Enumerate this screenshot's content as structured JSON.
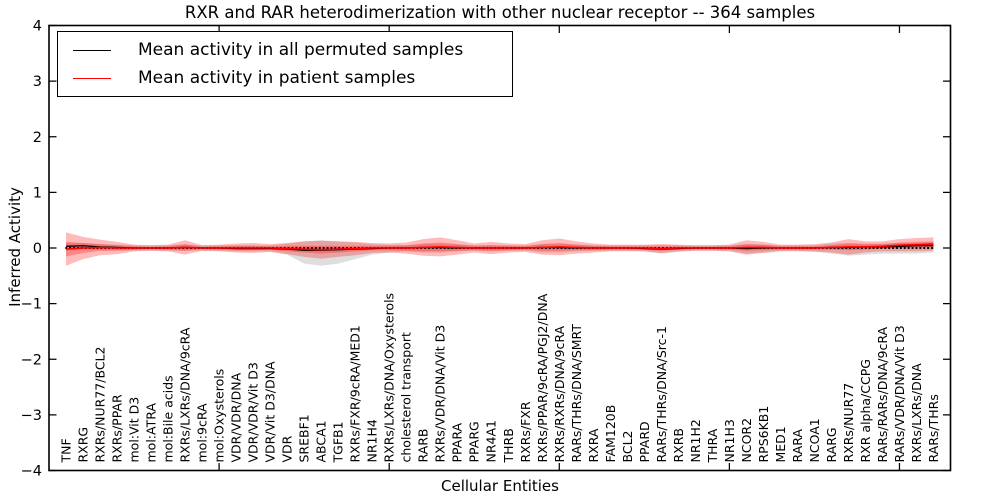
{
  "figure": {
    "background": "#ffffff"
  },
  "chart_data": {
    "type": "line",
    "title": "RXR and RAR heterodimerization with other nuclear receptor -- 364 samples",
    "xlabel": "Cellular Entities",
    "ylabel": "Inferred Activity",
    "xlim": [
      0,
      53
    ],
    "ylim": [
      -4,
      4
    ],
    "grid": false,
    "legend_position": "upper left",
    "yticks": {
      "values": [
        -4,
        -3,
        -2,
        -1,
        0,
        1,
        2,
        3,
        4
      ],
      "labels": [
        "−4",
        "−3",
        "−2",
        "−1",
        "0",
        "1",
        "2",
        "3",
        "4"
      ]
    },
    "xticks": {
      "values": [
        10,
        20,
        30,
        40,
        50
      ]
    },
    "legend": [
      {
        "label": "Mean activity in all permuted samples",
        "color": "#000000"
      },
      {
        "label": "Mean activity in patient samples",
        "color": "#ff0000"
      }
    ],
    "categories": [
      "TNF",
      "RXRG",
      "RXRs/NUR77/BCL2",
      "RXRs/PPAR",
      "mol:Vit D3",
      "mol:ATRA",
      "mol:Bile acids",
      "RXRs/LXRs/DNA/9cRA",
      "mol:9cRA",
      "mol:Oxysterols",
      "VDR/VDR/DNA",
      "VDR/VDR/Vit D3",
      "VDR/Vit D3/DNA",
      "VDR",
      "SREBF1",
      "ABCA1",
      "TGFB1",
      "RXRs/FXR/9cRA/MED1",
      "NR1H4",
      "RXRs/LXRs/DNA/Oxysterols",
      "cholesterol transport",
      "RARB",
      "RXRs/VDR/DNA/Vit D3",
      "PPARA",
      "PPARG",
      "NR4A1",
      "THRB",
      "RXRs/FXR",
      "RXRs/PPAR/9cRA/PGJ2/DNA",
      "RXRs/RXRs/DNA/9cRA",
      "RARs/THRs/DNA/SMRT",
      "RXRA",
      "FAM120B",
      "BCL2",
      "PPARD",
      "RARs/THRs/DNA/Src-1",
      "RXRB",
      "NR1H2",
      "THRA",
      "NR1H3",
      "NCOR2",
      "RPS6KB1",
      "MED1",
      "RARA",
      "NCOA1",
      "RARG",
      "RXRs/NUR77",
      "RXR alpha/CCPG",
      "RARs/RARs/DNA/9cRA",
      "RARs/VDR/DNA/Vit D3",
      "RXRs/LXRs/DNA",
      "RARs/THRs"
    ],
    "series": [
      {
        "name": "Mean activity in all permuted samples",
        "color": "#000000",
        "values": [
          0.03,
          0.04,
          0.02,
          0.01,
          0,
          0,
          0,
          0.01,
          0,
          0,
          -0.01,
          -0.01,
          -0.01,
          -0.02,
          -0.04,
          -0.04,
          -0.03,
          -0.02,
          -0.01,
          0,
          0,
          0.01,
          0.01,
          0,
          0,
          0,
          0,
          0,
          0.01,
          0.01,
          0,
          0,
          0,
          0,
          -0.01,
          -0.02,
          -0.01,
          0,
          0,
          0,
          -0.01,
          0,
          0,
          0,
          0,
          0.01,
          0.01,
          0.02,
          0.02,
          0.03,
          0.04,
          0.04
        ]
      },
      {
        "name": "Mean activity in patient samples",
        "color": "#ff0000",
        "values": [
          -0.02,
          0,
          0.01,
          0,
          0,
          0,
          0,
          0.01,
          0,
          0,
          0,
          0,
          0,
          -0.01,
          -0.02,
          -0.03,
          -0.02,
          -0.01,
          0,
          0,
          0,
          0.01,
          0.02,
          0.01,
          0,
          0,
          0,
          0,
          0.01,
          0.02,
          0.01,
          0,
          0,
          0,
          0,
          -0.01,
          0,
          0,
          0,
          0,
          0.01,
          0.01,
          0,
          0,
          0,
          0.01,
          0.02,
          0.02,
          0.03,
          0.05,
          0.06,
          0.07
        ]
      }
    ],
    "zero_line": {
      "value": 0,
      "color": "#000000",
      "style": "dotted"
    },
    "bands": [
      {
        "name": "permuted-samples-range",
        "color": "rgba(0,0,0,0.13)",
        "lo": [
          -0.05,
          -0.03,
          -0.04,
          -0.04,
          -0.05,
          -0.05,
          -0.05,
          -0.05,
          -0.05,
          -0.05,
          -0.06,
          -0.06,
          -0.06,
          -0.12,
          -0.28,
          -0.32,
          -0.28,
          -0.2,
          -0.12,
          -0.08,
          -0.06,
          -0.08,
          -0.08,
          -0.06,
          -0.05,
          -0.06,
          -0.05,
          -0.05,
          -0.08,
          -0.08,
          -0.06,
          -0.05,
          -0.05,
          -0.05,
          -0.06,
          -0.1,
          -0.07,
          -0.05,
          -0.05,
          -0.05,
          -0.1,
          -0.08,
          -0.05,
          -0.05,
          -0.06,
          -0.1,
          -0.14,
          -0.12,
          -0.1,
          -0.1,
          -0.1,
          -0.08
        ],
        "hi": [
          0.08,
          0.09,
          0.07,
          0.06,
          0.05,
          0.05,
          0.05,
          0.06,
          0.05,
          0.05,
          0.05,
          0.05,
          0.05,
          0.08,
          0.12,
          0.14,
          0.12,
          0.1,
          0.07,
          0.06,
          0.05,
          0.07,
          0.07,
          0.06,
          0.05,
          0.05,
          0.05,
          0.05,
          0.07,
          0.07,
          0.06,
          0.05,
          0.05,
          0.05,
          0.05,
          0.06,
          0.05,
          0.05,
          0.05,
          0.05,
          0.07,
          0.06,
          0.05,
          0.05,
          0.05,
          0.08,
          0.09,
          0.08,
          0.08,
          0.09,
          0.09,
          0.1
        ]
      },
      {
        "name": "patient-samples-outer-range",
        "color": "rgba(255,0,0,0.27)",
        "lo": [
          -0.32,
          -0.2,
          -0.13,
          -0.11,
          -0.06,
          -0.05,
          -0.06,
          -0.12,
          -0.05,
          -0.06,
          -0.08,
          -0.09,
          -0.07,
          -0.11,
          -0.16,
          -0.19,
          -0.16,
          -0.13,
          -0.09,
          -0.08,
          -0.1,
          -0.14,
          -0.15,
          -0.12,
          -0.08,
          -0.11,
          -0.08,
          -0.07,
          -0.12,
          -0.13,
          -0.1,
          -0.08,
          -0.06,
          -0.06,
          -0.06,
          -0.09,
          -0.06,
          -0.05,
          -0.05,
          -0.06,
          -0.12,
          -0.09,
          -0.06,
          -0.06,
          -0.07,
          -0.08,
          -0.12,
          -0.08,
          -0.06,
          -0.06,
          -0.06,
          -0.05
        ],
        "hi": [
          0.28,
          0.2,
          0.15,
          0.11,
          0.06,
          0.05,
          0.06,
          0.14,
          0.05,
          0.06,
          0.08,
          0.09,
          0.07,
          0.09,
          0.12,
          0.13,
          0.12,
          0.11,
          0.09,
          0.08,
          0.1,
          0.16,
          0.19,
          0.14,
          0.08,
          0.11,
          0.08,
          0.07,
          0.14,
          0.17,
          0.12,
          0.08,
          0.06,
          0.06,
          0.06,
          0.07,
          0.06,
          0.05,
          0.05,
          0.06,
          0.14,
          0.11,
          0.06,
          0.06,
          0.07,
          0.1,
          0.16,
          0.12,
          0.12,
          0.16,
          0.18,
          0.19
        ]
      },
      {
        "name": "patient-samples-inner-range",
        "color": "rgba(255,0,0,0.28)",
        "lo": [
          -0.15,
          -0.09,
          -0.05,
          -0.05,
          -0.03,
          -0.02,
          -0.03,
          -0.05,
          -0.02,
          -0.03,
          -0.04,
          -0.04,
          -0.03,
          -0.06,
          -0.08,
          -0.1,
          -0.08,
          -0.06,
          -0.04,
          -0.04,
          -0.05,
          -0.06,
          -0.06,
          -0.05,
          -0.04,
          -0.05,
          -0.04,
          -0.03,
          -0.05,
          -0.05,
          -0.04,
          -0.04,
          -0.03,
          -0.03,
          -0.03,
          -0.05,
          -0.03,
          -0.02,
          -0.02,
          -0.03,
          -0.05,
          -0.04,
          -0.03,
          -0.03,
          -0.03,
          -0.03,
          -0.04,
          -0.03,
          -0.01,
          0.0,
          0.01,
          0.02
        ],
        "hi": [
          0.11,
          0.09,
          0.07,
          0.05,
          0.03,
          0.02,
          0.03,
          0.07,
          0.02,
          0.03,
          0.04,
          0.04,
          0.03,
          0.04,
          0.04,
          0.04,
          0.04,
          0.04,
          0.04,
          0.04,
          0.05,
          0.08,
          0.1,
          0.07,
          0.04,
          0.05,
          0.04,
          0.03,
          0.07,
          0.09,
          0.06,
          0.04,
          0.03,
          0.03,
          0.03,
          0.03,
          0.03,
          0.02,
          0.02,
          0.03,
          0.07,
          0.06,
          0.03,
          0.03,
          0.03,
          0.05,
          0.08,
          0.07,
          0.07,
          0.1,
          0.11,
          0.12
        ]
      }
    ]
  }
}
